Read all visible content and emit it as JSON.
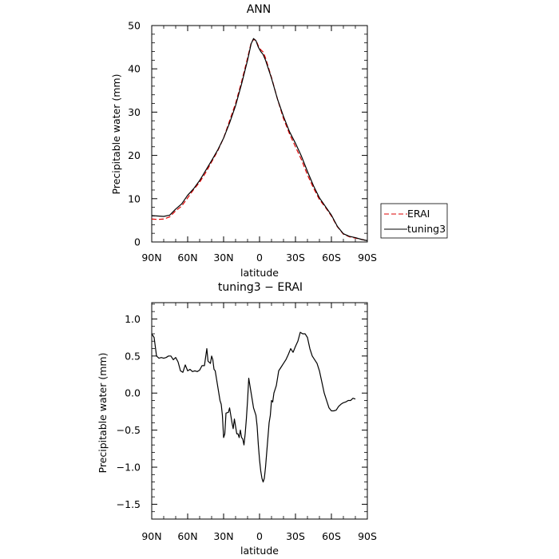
{
  "chart_data": [
    {
      "type": "line",
      "title": "ANN",
      "xlabel": "latitude",
      "ylabel": "Precipitable water (mm)",
      "xlim": [
        90,
        -90
      ],
      "ylim": [
        0,
        50
      ],
      "x_tick_values": [
        90,
        60,
        30,
        0,
        -30,
        -60,
        -90
      ],
      "x_tick_labels": [
        "90N",
        "60N",
        "30N",
        "0",
        "30S",
        "60S",
        "90S"
      ],
      "y_tick_values": [
        0,
        10,
        20,
        30,
        40,
        50
      ],
      "y_tick_labels": [
        "0",
        "10",
        "20",
        "30",
        "40",
        "50"
      ],
      "legend_position": "right",
      "series": [
        {
          "name": "ERAI",
          "color": "#dd0000",
          "dash": "dashed",
          "points": [
            [
              90,
              5.3
            ],
            [
              85,
              5.2
            ],
            [
              80,
              5.3
            ],
            [
              75,
              5.8
            ],
            [
              70,
              7.2
            ],
            [
              65,
              8.3
            ],
            [
              60,
              10.2
            ],
            [
              55,
              12.1
            ],
            [
              50,
              13.8
            ],
            [
              45,
              16
            ],
            [
              40,
              18.5
            ],
            [
              35,
              21
            ],
            [
              30,
              24
            ],
            [
              25,
              28
            ],
            [
              20,
              32
            ],
            [
              15,
              37
            ],
            [
              10,
              42.5
            ],
            [
              7,
              46
            ],
            [
              5,
              46.8
            ],
            [
              3,
              46.6
            ],
            [
              1,
              45.3
            ],
            [
              -1,
              44.4
            ],
            [
              -3,
              43.9
            ],
            [
              -5,
              42.5
            ],
            [
              -10,
              38
            ],
            [
              -15,
              33
            ],
            [
              -20,
              28.5
            ],
            [
              -25,
              25
            ],
            [
              -30,
              22
            ],
            [
              -35,
              19
            ],
            [
              -40,
              15.5
            ],
            [
              -45,
              12.5
            ],
            [
              -50,
              9.8
            ],
            [
              -55,
              8
            ],
            [
              -60,
              6
            ],
            [
              -65,
              3.5
            ],
            [
              -70,
              1.8
            ],
            [
              -75,
              1.2
            ],
            [
              -80,
              0.9
            ],
            [
              -85,
              0.6
            ],
            [
              -90,
              0.3
            ]
          ]
        },
        {
          "name": "tuning3",
          "color": "#000000",
          "dash": "solid",
          "points": [
            [
              90,
              6.1
            ],
            [
              85,
              6
            ],
            [
              80,
              5.9
            ],
            [
              75,
              6.2
            ],
            [
              70,
              7.6
            ],
            [
              65,
              8.8
            ],
            [
              60,
              10.8
            ],
            [
              55,
              12.3
            ],
            [
              50,
              14.2
            ],
            [
              45,
              16.5
            ],
            [
              40,
              18.8
            ],
            [
              35,
              21.2
            ],
            [
              30,
              24
            ],
            [
              25,
              27.5
            ],
            [
              20,
              31.5
            ],
            [
              15,
              36.5
            ],
            [
              10,
              42
            ],
            [
              7,
              45.8
            ],
            [
              5,
              47
            ],
            [
              3,
              46.5
            ],
            [
              1,
              45
            ],
            [
              -1,
              44
            ],
            [
              -3,
              43.3
            ],
            [
              -5,
              42
            ],
            [
              -10,
              37.8
            ],
            [
              -15,
              33
            ],
            [
              -20,
              29
            ],
            [
              -25,
              25.5
            ],
            [
              -30,
              22.8
            ],
            [
              -35,
              19.8
            ],
            [
              -40,
              16.3
            ],
            [
              -45,
              13
            ],
            [
              -50,
              10.2
            ],
            [
              -55,
              8.2
            ],
            [
              -60,
              6.2
            ],
            [
              -65,
              3.6
            ],
            [
              -70,
              1.9
            ],
            [
              -75,
              1.3
            ],
            [
              -80,
              1
            ],
            [
              -85,
              0.6
            ],
            [
              -90,
              0.3
            ]
          ]
        }
      ]
    },
    {
      "type": "line",
      "title": "tuning3 − ERAI",
      "xlabel": "latitude",
      "ylabel": "Precipitable water (mm)",
      "xlim": [
        90,
        -90
      ],
      "ylim": [
        -1.7,
        1.22
      ],
      "x_tick_values": [
        90,
        60,
        30,
        0,
        -30,
        -60,
        -90
      ],
      "x_tick_labels": [
        "90N",
        "60N",
        "30N",
        "0",
        "30S",
        "60S",
        "90S"
      ],
      "y_tick_values": [
        -1.5,
        -1.0,
        -0.5,
        0.0,
        0.5,
        1.0
      ],
      "y_tick_labels": [
        "−1.5",
        "−1.0",
        "−0.5",
        "0.0",
        "0.5",
        "1.0"
      ],
      "series": [
        {
          "color": "#000000",
          "dash": "solid",
          "points": [
            [
              90,
              0.8
            ],
            [
              88,
              0.75
            ],
            [
              86,
              0.5
            ],
            [
              84,
              0.47
            ],
            [
              82,
              0.48
            ],
            [
              80,
              0.47
            ],
            [
              78,
              0.48
            ],
            [
              76,
              0.5
            ],
            [
              74,
              0.5
            ],
            [
              72,
              0.45
            ],
            [
              70,
              0.48
            ],
            [
              68,
              0.42
            ],
            [
              66,
              0.3
            ],
            [
              64,
              0.28
            ],
            [
              62,
              0.38
            ],
            [
              60,
              0.3
            ],
            [
              58,
              0.32
            ],
            [
              56,
              0.29
            ],
            [
              54,
              0.3
            ],
            [
              52,
              0.29
            ],
            [
              50,
              0.31
            ],
            [
              48,
              0.37
            ],
            [
              46,
              0.37
            ],
            [
              44,
              0.6
            ],
            [
              43,
              0.43
            ],
            [
              41,
              0.4
            ],
            [
              40,
              0.5
            ],
            [
              39,
              0.45
            ],
            [
              38,
              0.32
            ],
            [
              37,
              0.3
            ],
            [
              36,
              0.2
            ],
            [
              34,
              0.0
            ],
            [
              33,
              -0.1
            ],
            [
              32,
              -0.15
            ],
            [
              31,
              -0.3
            ],
            [
              30,
              -0.6
            ],
            [
              29,
              -0.55
            ],
            [
              28,
              -0.27
            ],
            [
              26,
              -0.26
            ],
            [
              25,
              -0.2
            ],
            [
              24,
              -0.3
            ],
            [
              23,
              -0.4
            ],
            [
              22,
              -0.48
            ],
            [
              21,
              -0.35
            ],
            [
              20,
              -0.45
            ],
            [
              19,
              -0.55
            ],
            [
              18,
              -0.55
            ],
            [
              17,
              -0.6
            ],
            [
              16,
              -0.5
            ],
            [
              15,
              -0.6
            ],
            [
              14,
              -0.62
            ],
            [
              13,
              -0.7
            ],
            [
              12,
              -0.55
            ],
            [
              11,
              -0.35
            ],
            [
              10,
              -0.1
            ],
            [
              9,
              0.2
            ],
            [
              8,
              0.1
            ],
            [
              7,
              0.0
            ],
            [
              6,
              -0.1
            ],
            [
              5,
              -0.2
            ],
            [
              4,
              -0.25
            ],
            [
              3,
              -0.3
            ],
            [
              2,
              -0.45
            ],
            [
              1,
              -0.7
            ],
            [
              0,
              -0.9
            ],
            [
              -1,
              -1.05
            ],
            [
              -2,
              -1.15
            ],
            [
              -3,
              -1.2
            ],
            [
              -4,
              -1.15
            ],
            [
              -5,
              -1.0
            ],
            [
              -6,
              -0.8
            ],
            [
              -7,
              -0.6
            ],
            [
              -8,
              -0.4
            ],
            [
              -9,
              -0.3
            ],
            [
              -10,
              -0.1
            ],
            [
              -11,
              -0.12
            ],
            [
              -12,
              0.0
            ],
            [
              -13,
              0.05
            ],
            [
              -14,
              0.1
            ],
            [
              -15,
              0.2
            ],
            [
              -16,
              0.3
            ],
            [
              -18,
              0.35
            ],
            [
              -20,
              0.4
            ],
            [
              -22,
              0.45
            ],
            [
              -24,
              0.52
            ],
            [
              -26,
              0.6
            ],
            [
              -28,
              0.55
            ],
            [
              -30,
              0.63
            ],
            [
              -32,
              0.7
            ],
            [
              -34,
              0.82
            ],
            [
              -36,
              0.8
            ],
            [
              -38,
              0.8
            ],
            [
              -40,
              0.75
            ],
            [
              -42,
              0.6
            ],
            [
              -44,
              0.5
            ],
            [
              -46,
              0.45
            ],
            [
              -48,
              0.4
            ],
            [
              -50,
              0.3
            ],
            [
              -52,
              0.15
            ],
            [
              -54,
              0.0
            ],
            [
              -56,
              -0.1
            ],
            [
              -58,
              -0.2
            ],
            [
              -60,
              -0.24
            ],
            [
              -62,
              -0.24
            ],
            [
              -64,
              -0.23
            ],
            [
              -66,
              -0.18
            ],
            [
              -68,
              -0.15
            ],
            [
              -70,
              -0.13
            ],
            [
              -72,
              -0.12
            ],
            [
              -74,
              -0.1
            ],
            [
              -76,
              -0.1
            ],
            [
              -78,
              -0.07
            ],
            [
              -80,
              -0.08
            ]
          ]
        }
      ]
    }
  ]
}
